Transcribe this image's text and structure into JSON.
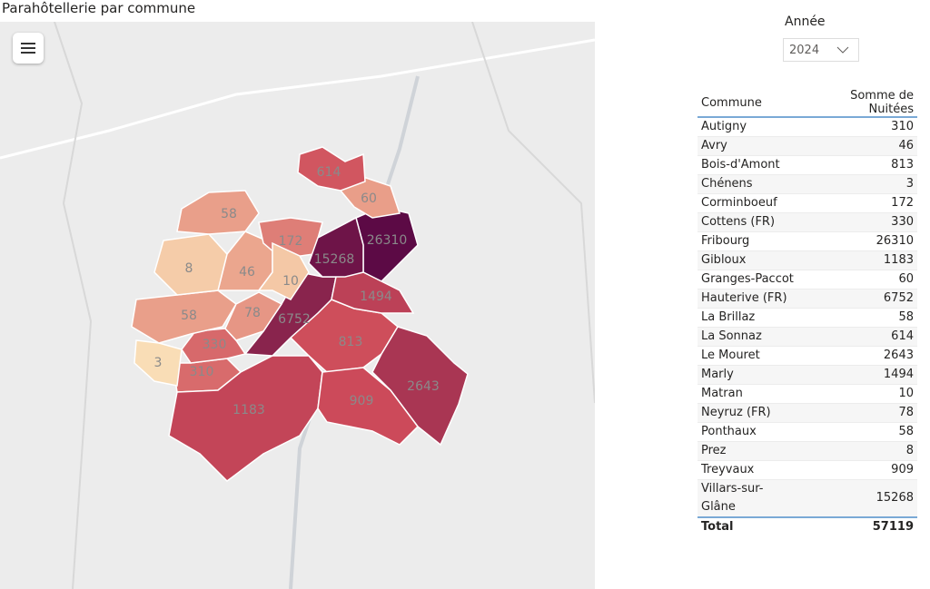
{
  "title": "Parahôtellerie par commune",
  "slicer": {
    "label": "Année",
    "value": "2024"
  },
  "table": {
    "headers": [
      "Commune",
      "Somme de Nuitées"
    ],
    "rows": [
      [
        "Autigny",
        "310"
      ],
      [
        "Avry",
        "46"
      ],
      [
        "Bois-d'Amont",
        "813"
      ],
      [
        "Chénens",
        "3"
      ],
      [
        "Corminboeuf",
        "172"
      ],
      [
        "Cottens (FR)",
        "330"
      ],
      [
        "Fribourg",
        "26310"
      ],
      [
        "Gibloux",
        "1183"
      ],
      [
        "Granges-Paccot",
        "60"
      ],
      [
        "Hauterive (FR)",
        "6752"
      ],
      [
        "La Brillaz",
        "58"
      ],
      [
        "La Sonnaz",
        "614"
      ],
      [
        "Le Mouret",
        "2643"
      ],
      [
        "Marly",
        "1494"
      ],
      [
        "Matran",
        "10"
      ],
      [
        "Neyruz (FR)",
        "78"
      ],
      [
        "Ponthaux",
        "58"
      ],
      [
        "Prez",
        "8"
      ],
      [
        "Treyvaux",
        "909"
      ],
      [
        "Villars-sur-Glâne",
        "15268"
      ]
    ],
    "total": [
      "Total",
      "57119"
    ]
  }
}
